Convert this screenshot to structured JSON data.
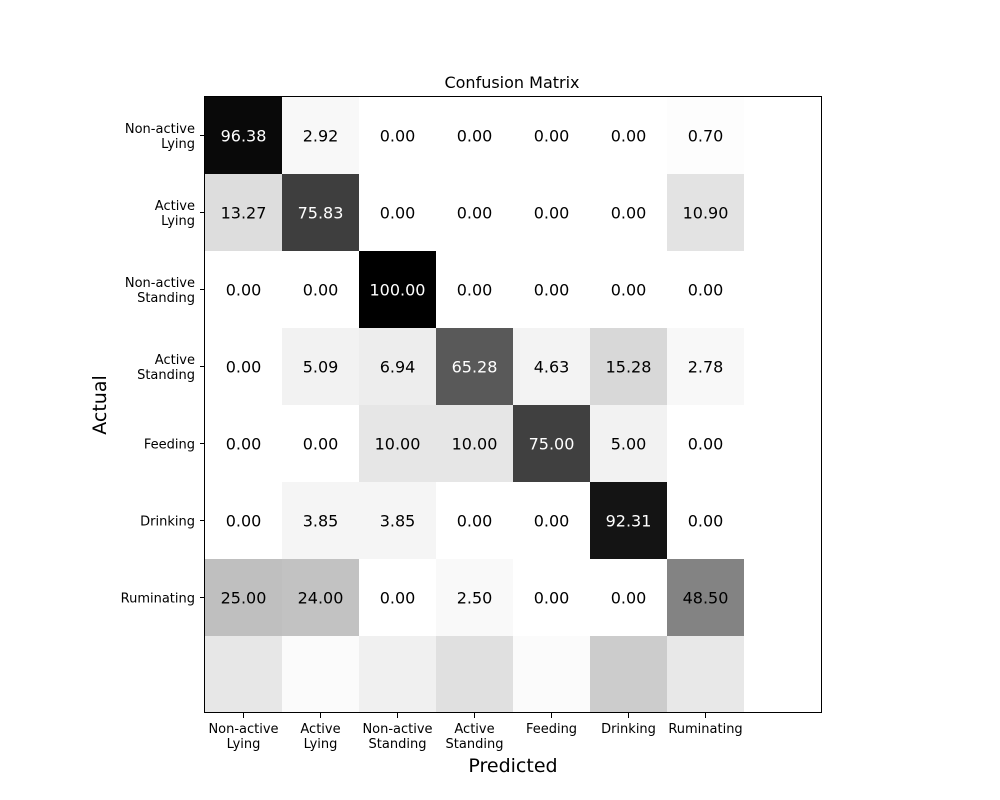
{
  "chart_data": {
    "type": "heatmap",
    "title": "Confusion Matrix",
    "xlabel": "Predicted",
    "ylabel": "Actual",
    "x_categories": [
      [
        "Non-active",
        "Lying"
      ],
      [
        "Active",
        "Lying"
      ],
      [
        "Non-active",
        "Standing"
      ],
      [
        "Active",
        "Standing"
      ],
      [
        "Feeding"
      ],
      [
        "Drinking"
      ],
      [
        "Ruminating"
      ]
    ],
    "y_categories": [
      [
        "Non-active",
        "Lying"
      ],
      [
        "Active",
        "Lying"
      ],
      [
        "Non-active",
        "Standing"
      ],
      [
        "Active",
        "Standing"
      ],
      [
        "Feeding"
      ],
      [
        "Drinking"
      ],
      [
        "Ruminating"
      ]
    ],
    "values": [
      [
        "96.38",
        "2.92",
        "0.00",
        "0.00",
        "0.00",
        "0.00",
        "0.70"
      ],
      [
        "13.27",
        "75.83",
        "0.00",
        "0.00",
        "0.00",
        "0.00",
        "10.90"
      ],
      [
        "0.00",
        "0.00",
        "100.00",
        "0.00",
        "0.00",
        "0.00",
        "0.00"
      ],
      [
        "0.00",
        "5.09",
        "6.94",
        "65.28",
        "4.63",
        "15.28",
        "2.78"
      ],
      [
        "0.00",
        "0.00",
        "10.00",
        "10.00",
        "75.00",
        "5.00",
        "0.00"
      ],
      [
        "0.00",
        "3.85",
        "3.85",
        "0.00",
        "0.00",
        "92.31",
        "0.00"
      ],
      [
        "25.00",
        "24.00",
        "0.00",
        "2.50",
        "0.00",
        "0.00",
        "48.50"
      ]
    ],
    "extra_row_values": [
      9.5,
      1.5,
      6.0,
      12.0,
      1.5,
      20.0,
      9.0
    ],
    "colormap": "greys",
    "color_range": [
      0,
      100
    ],
    "grid": false
  }
}
